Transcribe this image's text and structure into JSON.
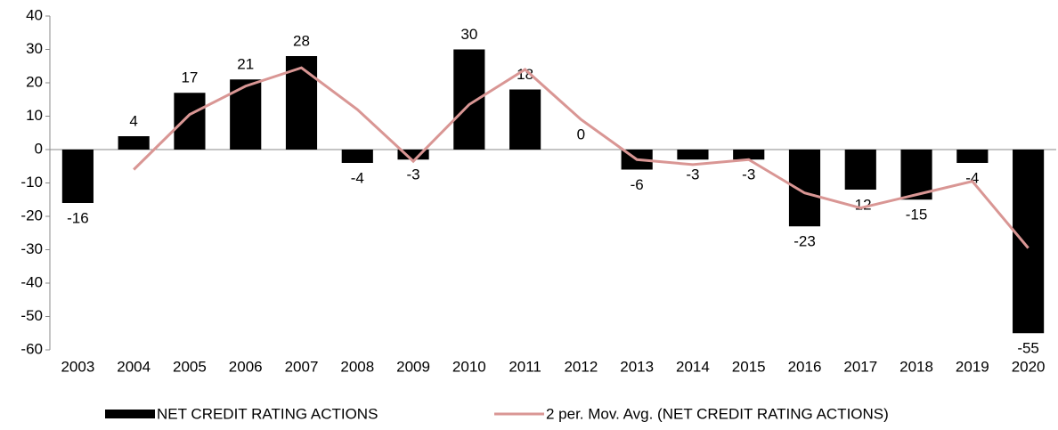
{
  "chart_data": {
    "type": "bar",
    "categories": [
      "2003",
      "2004",
      "2005",
      "2006",
      "2007",
      "2008",
      "2009",
      "2010",
      "2011",
      "2012",
      "2013",
      "2014",
      "2015",
      "2016",
      "2017",
      "2018",
      "2019",
      "2020"
    ],
    "series": [
      {
        "name": "NET CREDIT RATING ACTIONS",
        "type": "bar",
        "color": "#000000",
        "values": [
          -16,
          4,
          17,
          21,
          28,
          -4,
          -3,
          30,
          18,
          0,
          -6,
          -3,
          -3,
          -23,
          -12,
          -15,
          -4,
          -55
        ]
      },
      {
        "name": "2 per. Mov. Avg. (NET CREDIT RATING ACTIONS)",
        "type": "line",
        "color": "#d99694",
        "values": [
          null,
          -6,
          10.5,
          19,
          24.5,
          12,
          -3.5,
          13.5,
          24,
          9,
          -3,
          -4.5,
          -3,
          -13,
          -17.5,
          -13.5,
          -9.5,
          -29.5
        ]
      }
    ],
    "ylim": [
      -60,
      40
    ],
    "yticks": [
      -60,
      -50,
      -40,
      -30,
      -20,
      -10,
      0,
      10,
      20,
      30,
      40
    ],
    "grid": false,
    "legend": "bottom"
  }
}
